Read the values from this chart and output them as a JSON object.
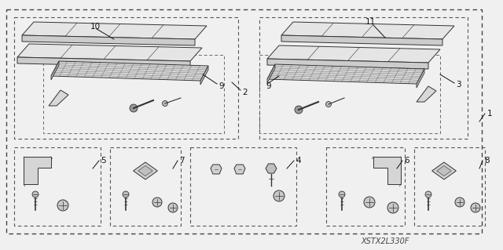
{
  "bg_color": "#f0f0f0",
  "footer_text": "XSTX2L330F",
  "line_color": "#333333",
  "dash_color": "#555555"
}
